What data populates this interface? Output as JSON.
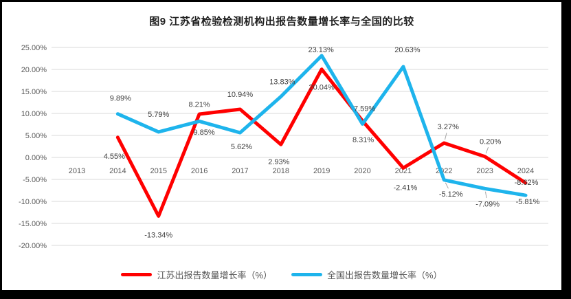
{
  "chart_data": {
    "type": "line",
    "title": "图9  江苏省检验检测机构出报告数量增长率与全国的比较",
    "categories": [
      "2013",
      "2014",
      "2015",
      "2016",
      "2017",
      "2018",
      "2019",
      "2020",
      "2021",
      "2022",
      "2023",
      "2024"
    ],
    "series": [
      {
        "name": "江苏出报告数量增长率（%）",
        "color": "#FF0000",
        "values": [
          null,
          4.55,
          -13.34,
          9.85,
          10.94,
          2.93,
          20.04,
          8.31,
          -2.41,
          3.27,
          0.2,
          -5.81
        ]
      },
      {
        "name": "全国出报告数量增长率（%）",
        "color": "#1EB4EC",
        "values": [
          null,
          9.89,
          5.79,
          8.21,
          5.62,
          13.83,
          23.13,
          7.59,
          20.63,
          -5.12,
          -7.09,
          -8.62
        ]
      }
    ],
    "y_axis": {
      "tick_labels": [
        "25.00%",
        "20.00%",
        "15.00%",
        "10.00%",
        "5.00%",
        "0.00%",
        "-5.00%",
        "-10.00%",
        "-15.00%",
        "-20.00%"
      ],
      "min": -20,
      "max": 25,
      "step": 5
    },
    "grid": true,
    "data_labels": true,
    "legend_position": "bottom"
  },
  "colors": {
    "grid": "#D9D9D9",
    "axis_text": "#595959",
    "data_label_text": "#404040",
    "leader_line": "#A6A6A6",
    "frame": "#000000",
    "background": "#FFFFFF"
  }
}
